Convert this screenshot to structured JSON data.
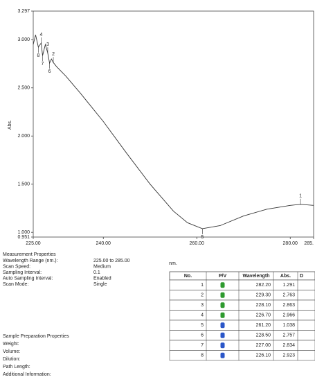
{
  "chart_data": {
    "type": "line",
    "y_label": "Abs.",
    "x_label": "nm.",
    "xlim": [
      225,
      285
    ],
    "xticks": [
      {
        "value": 225,
        "label": "225.00"
      },
      {
        "value": 240,
        "label": "240.00"
      },
      {
        "value": 260,
        "label": "260.00"
      },
      {
        "value": 280,
        "label": "280.00"
      },
      {
        "value": 285,
        "label": "285."
      }
    ],
    "ylim": [
      0.951,
      3.297
    ],
    "yticks": [
      {
        "value": 0.951,
        "label": "0.951"
      },
      {
        "value": 1,
        "label": "1.000"
      },
      {
        "value": 1.5,
        "label": "1.500"
      },
      {
        "value": 2,
        "label": "2.000"
      },
      {
        "value": 2.5,
        "label": "2.500"
      },
      {
        "value": 3,
        "label": "3.000"
      },
      {
        "value": 3.297,
        "label": "3.297"
      }
    ],
    "series": [
      {
        "color": "#333333",
        "x": [
          225.0,
          225.5,
          226.1,
          226.7,
          227.0,
          227.6,
          228.1,
          228.5,
          228.9,
          229.3,
          230,
          232,
          235,
          240,
          245,
          250,
          255,
          258,
          261.2,
          265,
          270,
          275,
          280,
          282.2,
          285
        ],
        "values": [
          2.95,
          3.05,
          2.923,
          2.966,
          2.834,
          2.95,
          2.863,
          2.757,
          2.8,
          2.763,
          2.72,
          2.62,
          2.45,
          2.15,
          1.82,
          1.5,
          1.22,
          1.1,
          1.038,
          1.07,
          1.17,
          1.24,
          1.28,
          1.291,
          1.28
        ]
      }
    ]
  },
  "properties": {
    "measurement_title": "Measurement Properties",
    "measurement": [
      [
        "Wavelength Range (nm.):",
        "225.00 to 285.00"
      ],
      [
        "Scan Speed:",
        "Medium"
      ],
      [
        "Sampling Interval:",
        "0.1"
      ],
      [
        "Auto Sampling Interval:",
        "Enabled"
      ],
      [
        "Scan Mode:",
        "Single"
      ]
    ],
    "sample_title": "Sample Preparation Properties",
    "sample": [
      "Weight:",
      "Volume:",
      "Dilution:",
      "Path Length:",
      "Additional Information:"
    ]
  },
  "table": {
    "headers": [
      "No.",
      "P/V",
      "Wavelength",
      "Abs.",
      "D"
    ],
    "pv_colors": [
      "#2e9a2e",
      "#2e9a2e",
      "#2e9a2e",
      "#2e9a2e",
      "#2a56c8",
      "#2a56c8",
      "#2a56c8",
      "#2a56c8"
    ],
    "rows": [
      [
        "1",
        "282.20",
        "1.291"
      ],
      [
        "2",
        "229.30",
        "2.763"
      ],
      [
        "3",
        "228.10",
        "2.863"
      ],
      [
        "4",
        "226.70",
        "2.966"
      ],
      [
        "5",
        "261.20",
        "1.038"
      ],
      [
        "6",
        "228.50",
        "2.757"
      ],
      [
        "7",
        "227.00",
        "2.834"
      ],
      [
        "8",
        "226.10",
        "2.923"
      ]
    ]
  }
}
